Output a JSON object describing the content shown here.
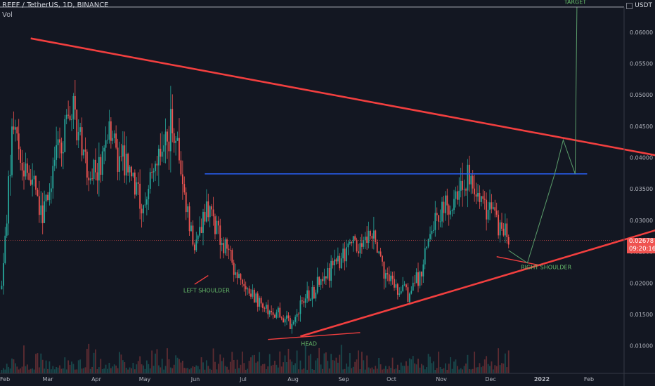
{
  "header": {
    "symbol_line": "REEF / TetherUS, 1D, BINANCE",
    "volume_label": "Vol",
    "currency": "USDT"
  },
  "last_price": {
    "value": "0.02678",
    "countdown": "09:20:16",
    "numeric": 0.02678
  },
  "colors": {
    "background": "#131722",
    "up": "#26a69a",
    "down": "#ef5350",
    "trendline": "#f23f3f",
    "neckline": "#2962ff",
    "projection": "#5a9c6a",
    "annotation": "#66bb6a"
  },
  "chart_data": {
    "type": "candlestick",
    "title": "REEF / TetherUS, 1D, BINANCE",
    "y_axis": {
      "position": "right",
      "scale": "linear",
      "range": [
        0.0056,
        0.064
      ],
      "ticks": [
        "0.06000",
        "0.05500",
        "0.05000",
        "0.04500",
        "0.04000",
        "0.03500",
        "0.03000",
        "0.02500",
        "0.02000",
        "0.01500",
        "0.01000"
      ]
    },
    "x_axis": {
      "ticks": [
        "Feb",
        "Mar",
        "Apr",
        "May",
        "Jun",
        "Jul",
        "Aug",
        "Sep",
        "Oct",
        "Nov",
        "Dec",
        "2022",
        "Feb"
      ]
    },
    "grid": false,
    "price_path": [
      {
        "date": "2021-02-01",
        "price": 0.019
      },
      {
        "date": "2021-02-08",
        "price": 0.046
      },
      {
        "date": "2021-02-15",
        "price": 0.038
      },
      {
        "date": "2021-02-25",
        "price": 0.031
      },
      {
        "date": "2021-03-05",
        "price": 0.04
      },
      {
        "date": "2021-03-15",
        "price": 0.048
      },
      {
        "date": "2021-03-25",
        "price": 0.036
      },
      {
        "date": "2021-04-05",
        "price": 0.043
      },
      {
        "date": "2021-04-15",
        "price": 0.039
      },
      {
        "date": "2021-04-25",
        "price": 0.032
      },
      {
        "date": "2021-05-05",
        "price": 0.042
      },
      {
        "date": "2021-05-12",
        "price": 0.045
      },
      {
        "date": "2021-05-20",
        "price": 0.033
      },
      {
        "date": "2021-05-25",
        "price": 0.025
      },
      {
        "date": "2021-06-01",
        "price": 0.032
      },
      {
        "date": "2021-06-15",
        "price": 0.024
      },
      {
        "date": "2021-06-25",
        "price": 0.019
      },
      {
        "date": "2021-07-05",
        "price": 0.016
      },
      {
        "date": "2021-07-15",
        "price": 0.015
      },
      {
        "date": "2021-07-20",
        "price": 0.0132
      },
      {
        "date": "2021-07-28",
        "price": 0.017
      },
      {
        "date": "2021-08-10",
        "price": 0.021
      },
      {
        "date": "2021-08-20",
        "price": 0.024
      },
      {
        "date": "2021-09-05",
        "price": 0.028
      },
      {
        "date": "2021-09-12",
        "price": 0.023
      },
      {
        "date": "2021-09-20",
        "price": 0.019
      },
      {
        "date": "2021-09-28",
        "price": 0.018
      },
      {
        "date": "2021-10-05",
        "price": 0.022
      },
      {
        "date": "2021-10-15",
        "price": 0.031
      },
      {
        "date": "2021-10-25",
        "price": 0.033
      },
      {
        "date": "2021-11-02",
        "price": 0.037
      },
      {
        "date": "2021-11-10",
        "price": 0.033
      },
      {
        "date": "2021-11-20",
        "price": 0.029
      },
      {
        "date": "2021-11-25",
        "price": 0.0268
      }
    ],
    "overlays": {
      "resistance_line": {
        "from": {
          "date": "2021-02-18",
          "price": 0.059
        },
        "to": {
          "date": "2022-03-18",
          "price": 0.039
        }
      },
      "support_line": {
        "from": {
          "date": "2021-07-26",
          "price": 0.0115
        },
        "to": {
          "date": "2022-03-18",
          "price": 0.0306
        }
      },
      "neckline": {
        "from": {
          "date": "2021-05-31",
          "price": 0.0374
        },
        "to": {
          "date": "2022-01-10",
          "price": 0.0374
        }
      },
      "left_shoulder_mark": {
        "from": {
          "date": "2021-05-25",
          "price": 0.0198
        },
        "to": {
          "date": "2021-06-02",
          "price": 0.0212
        }
      },
      "head_mark": {
        "from": {
          "date": "2021-07-07",
          "price": 0.011
        },
        "to": {
          "date": "2021-08-30",
          "price": 0.0121
        }
      },
      "right_shoulder_mark": {
        "from": {
          "date": "2021-11-18",
          "price": 0.0242
        },
        "to": {
          "date": "2021-12-14",
          "price": 0.0228
        }
      },
      "projection_path": [
        {
          "date": "2021-11-25",
          "price": 0.0252
        },
        {
          "date": "2021-12-06",
          "price": 0.0232
        },
        {
          "date": "2021-12-22",
          "price": 0.0374
        },
        {
          "date": "2021-12-27",
          "price": 0.0428
        },
        {
          "date": "2022-01-03",
          "price": 0.0374
        },
        {
          "date": "2022-01-04",
          "price": 0.064
        }
      ]
    },
    "annotations": [
      {
        "text": "LEFT SHOULDER",
        "date": "2021-06-01",
        "price": 0.0185
      },
      {
        "text": "HEAD",
        "date": "2021-07-31",
        "price": 0.01
      },
      {
        "text": "RIGHT SHOULDER",
        "date": "2021-12-17",
        "price": 0.0222
      },
      {
        "text": "TARGET",
        "date": "2022-01-03",
        "price": 0.0645
      }
    ]
  }
}
